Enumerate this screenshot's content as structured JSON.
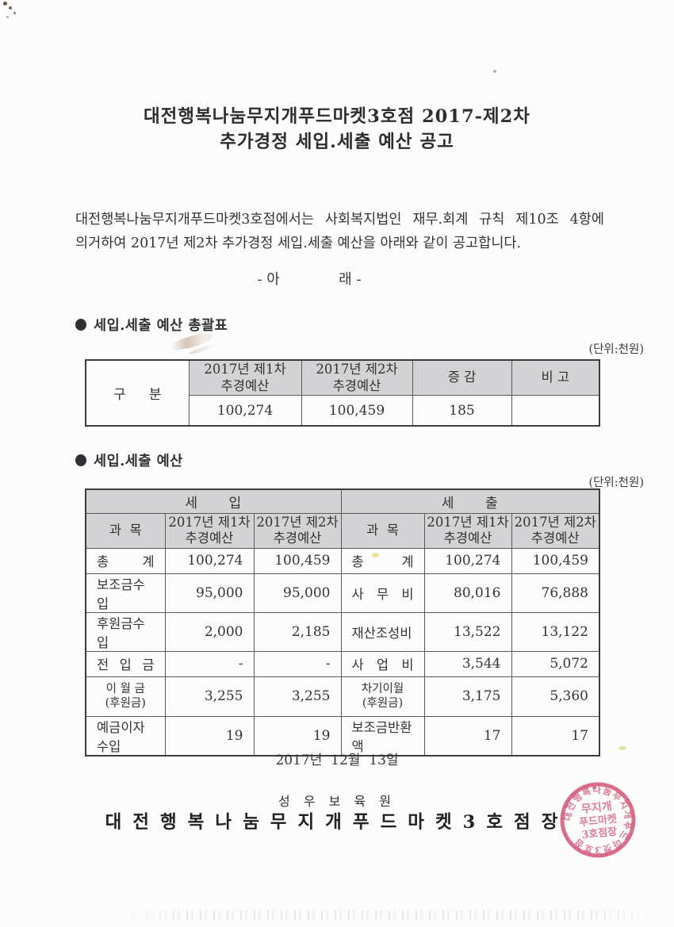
{
  "doc": {
    "title_line1": "대전행복나눔무지개푸드마켓3호점 2017-제2차",
    "title_line2": "추가경정 세입.세출 예산 공고",
    "body_line1": "대전행복나눔무지개푸드마켓3호점에서는 사회복지법인 재무.회계 규칙 제10조 4항에",
    "body_line2": "의거하여 2017년 제2차 추가경정  세입.세출 예산을 아래와 같이 공고합니다.",
    "arae": "- 아             래 -"
  },
  "section1": {
    "heading": "세입.세출 예산 총괄표",
    "unit": "(단위:천원)",
    "table": {
      "col_gubun": "구 분",
      "headers": [
        "2017년 제1차\n추경예산",
        "2017년 제2차\n추경예산",
        "증 감",
        "비 고"
      ],
      "values": [
        "100,274",
        "100,459",
        "185",
        ""
      ]
    }
  },
  "section2": {
    "heading": "세입.세출 예산",
    "unit": "(단위:천원)",
    "table": {
      "group_headers": [
        "세      입",
        "세      출"
      ],
      "col_headers": [
        "과  목",
        "2017년 제1차\n추경예산",
        "2017년 제2차\n추경예산",
        "과  목",
        "2017년 제1차\n추경예산",
        "2017년 제2차\n추경예산"
      ],
      "rows": [
        [
          "총 계",
          "100,274",
          "100,459",
          "총 계",
          "100,274",
          "100,459"
        ],
        [
          "보조금수입",
          "95,000",
          "95,000",
          "사 무 비",
          "80,016",
          "76,888"
        ],
        [
          "후원금수입",
          "2,000",
          "2,185",
          "재산조성비",
          "13,522",
          "13,122"
        ],
        [
          "전 입 금",
          "-",
          "-",
          "사 업 비",
          "3,544",
          "5,072"
        ],
        [
          "이 월 금\n(후원금)",
          "3,255",
          "3,255",
          "차기이월\n(후원금)",
          "3,175",
          "5,360"
        ],
        [
          "예금이자수입",
          "19",
          "19",
          "보조금반환액",
          "17",
          "17"
        ]
      ]
    }
  },
  "footer": {
    "date": "2017년  12월  13일",
    "org": "성 우 보 육 원",
    "signer": "대전행복나눔무지개푸드마켓3호점장",
    "stamp": {
      "ring": "대전행복나눔무지개푸드마켓3호점",
      "center1": "무지개",
      "center2": "푸드마켓",
      "center3": "3호점장",
      "color": "#d14a6e"
    }
  },
  "colors": {
    "paper": "#fcfcfd",
    "header_bg": "#d3d3d5",
    "text": "#343434",
    "stamp": "#d14a6e"
  }
}
